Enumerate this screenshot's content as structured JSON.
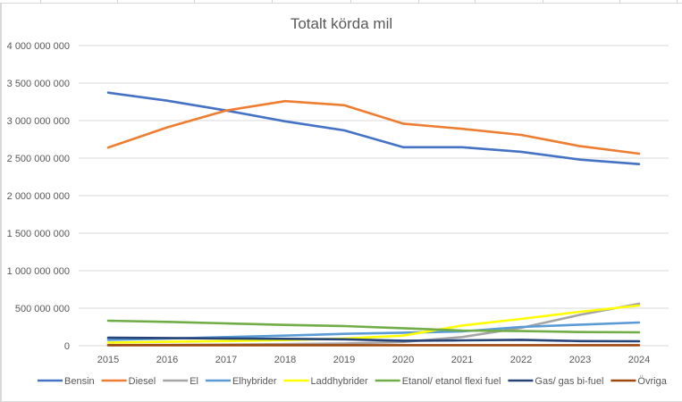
{
  "chart_data": {
    "type": "line",
    "title": "Totalt körda mil",
    "xlabel": "",
    "ylabel": "",
    "ylim": [
      0,
      4000000000
    ],
    "y_ticks": [
      0,
      500000000,
      1000000000,
      1500000000,
      2000000000,
      2500000000,
      3000000000,
      3500000000,
      4000000000
    ],
    "y_tick_labels": [
      "0",
      "500 000 000",
      "1 000 000 000",
      "1 500 000 000",
      "2 000 000 000",
      "2 500 000 000",
      "3 000 000 000",
      "3 500 000 000",
      "4 000 000 000"
    ],
    "grid": true,
    "legend_position": "bottom",
    "categories": [
      "2015",
      "2016",
      "2017",
      "2018",
      "2019",
      "2020",
      "2021",
      "2022",
      "2023",
      "2024"
    ],
    "series": [
      {
        "name": "Bensin",
        "color": "#4472C4",
        "values": [
          3373000000,
          3265000000,
          3135000000,
          2990000000,
          2870000000,
          2645000000,
          2645000000,
          2585000000,
          2480000000,
          2420000000
        ]
      },
      {
        "name": "Diesel",
        "color": "#ED7D31",
        "values": [
          2640000000,
          2910000000,
          3135000000,
          3260000000,
          3205000000,
          2960000000,
          2890000000,
          2810000000,
          2660000000,
          2560000000
        ]
      },
      {
        "name": "El",
        "color": "#A5A5A5",
        "values": [
          8000000,
          12000000,
          16000000,
          22000000,
          30000000,
          50000000,
          115000000,
          238000000,
          412000000,
          560000000
        ]
      },
      {
        "name": "Elhybrider",
        "color": "#5B9BD5",
        "values": [
          78000000,
          95000000,
          115000000,
          135000000,
          158000000,
          174000000,
          190000000,
          250000000,
          281000000,
          310000000
        ]
      },
      {
        "name": "Laddhybrider",
        "color": "#FFFF00",
        "values": [
          42000000,
          52000000,
          62000000,
          75000000,
          95000000,
          135000000,
          269000000,
          357000000,
          452000000,
          536000000
        ]
      },
      {
        "name": "Etanol/ etanol flexi fuel",
        "color": "#70AD47",
        "values": [
          333000000,
          318000000,
          298000000,
          277000000,
          262000000,
          233000000,
          202000000,
          195000000,
          182000000,
          179000000
        ]
      },
      {
        "name": "Gas/ gas bi-fuel",
        "color": "#264478",
        "values": [
          107000000,
          102000000,
          97000000,
          92000000,
          86000000,
          67000000,
          72000000,
          79000000,
          62000000,
          60000000
        ]
      },
      {
        "name": "Övriga",
        "color": "#9E480E",
        "values": [
          7000000,
          7000000,
          7000000,
          7000000,
          7000000,
          7000000,
          7000000,
          7000000,
          7000000,
          7000000
        ]
      }
    ]
  }
}
